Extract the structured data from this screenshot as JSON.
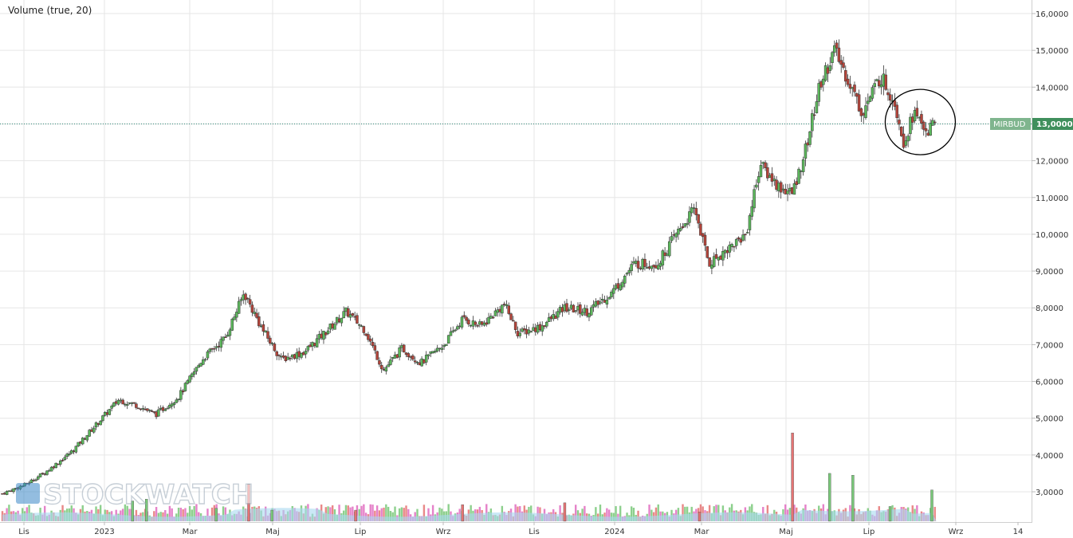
{
  "chart_data": {
    "type": "candlestick",
    "title": "",
    "indicator_label": "Volume (true, 20)",
    "symbol": "MIRBUD",
    "last_price": 13.0,
    "last_price_label": "13,0000",
    "ylim": [
      2.2,
      16.3
    ],
    "y_ticks": [
      3,
      4,
      5,
      6,
      7,
      8,
      9,
      10,
      11,
      12,
      13,
      14,
      15,
      16
    ],
    "y_tick_labels": [
      "3,0000",
      "4,0000",
      "5,0000",
      "6,0000",
      "7,0000",
      "8,0000",
      "9,0000",
      "10,0000",
      "11,0000",
      "12,0000",
      "13,0000",
      "14,0000",
      "15,0000",
      "16,0000"
    ],
    "x_axis_labels": [
      "Lis",
      "2023",
      "Mar",
      "Maj",
      "Lip",
      "Wrz",
      "Lis",
      "2024",
      "Mar",
      "Maj",
      "Lip",
      "Wrz",
      "14"
    ],
    "close_trend": [
      {
        "m": 0,
        "v": 2.95
      },
      {
        "m": 0.5,
        "v": 3.2
      },
      {
        "m": 1,
        "v": 3.6
      },
      {
        "m": 1.5,
        "v": 4.1
      },
      {
        "m": 2,
        "v": 4.8
      },
      {
        "m": 2.5,
        "v": 5.5
      },
      {
        "m": 2.9,
        "v": 5.35
      },
      {
        "m": 3.3,
        "v": 5.1
      },
      {
        "m": 3.8,
        "v": 5.6
      },
      {
        "m": 4.3,
        "v": 6.6
      },
      {
        "m": 4.8,
        "v": 7.2
      },
      {
        "m": 5.2,
        "v": 8.4
      },
      {
        "m": 5.6,
        "v": 7.4
      },
      {
        "m": 6,
        "v": 6.6
      },
      {
        "m": 6.5,
        "v": 6.8
      },
      {
        "m": 7,
        "v": 7.4
      },
      {
        "m": 7.4,
        "v": 7.9
      },
      {
        "m": 7.8,
        "v": 7.4
      },
      {
        "m": 8.2,
        "v": 6.3
      },
      {
        "m": 8.6,
        "v": 6.9
      },
      {
        "m": 9,
        "v": 6.5
      },
      {
        "m": 9.5,
        "v": 7.0
      },
      {
        "m": 9.9,
        "v": 7.7
      },
      {
        "m": 10.3,
        "v": 7.5
      },
      {
        "m": 10.8,
        "v": 8.1
      },
      {
        "m": 11.1,
        "v": 7.3
      },
      {
        "m": 11.6,
        "v": 7.5
      },
      {
        "m": 12.1,
        "v": 8.0
      },
      {
        "m": 12.6,
        "v": 7.9
      },
      {
        "m": 13.1,
        "v": 8.4
      },
      {
        "m": 13.6,
        "v": 9.2
      },
      {
        "m": 14.1,
        "v": 9.2
      },
      {
        "m": 14.5,
        "v": 10.0
      },
      {
        "m": 14.9,
        "v": 10.7
      },
      {
        "m": 15.2,
        "v": 9.2
      },
      {
        "m": 15.6,
        "v": 9.6
      },
      {
        "m": 16.0,
        "v": 10.0
      },
      {
        "m": 16.3,
        "v": 11.9
      },
      {
        "m": 16.7,
        "v": 11.3
      },
      {
        "m": 17.0,
        "v": 11.1
      },
      {
        "m": 17.3,
        "v": 12.4
      },
      {
        "m": 17.6,
        "v": 14.1
      },
      {
        "m": 17.9,
        "v": 15.0
      },
      {
        "m": 18.2,
        "v": 14.2
      },
      {
        "m": 18.5,
        "v": 13.3
      },
      {
        "m": 18.9,
        "v": 14.3
      },
      {
        "m": 19.2,
        "v": 13.6
      },
      {
        "m": 19.4,
        "v": 12.5
      },
      {
        "m": 19.6,
        "v": 13.3
      },
      {
        "m": 19.9,
        "v": 12.8
      },
      {
        "m": 20.1,
        "v": 13.0
      }
    ],
    "volume_spikes": [
      {
        "m": 4.6,
        "v": 0.35,
        "c": "up"
      },
      {
        "m": 5.8,
        "v": 0.3,
        "c": "up"
      },
      {
        "m": 2.8,
        "v": 0.55,
        "c": "up"
      },
      {
        "m": 7.6,
        "v": 0.3,
        "c": "down"
      },
      {
        "m": 9.9,
        "v": 0.45,
        "c": "down"
      },
      {
        "m": 15.0,
        "v": 0.25,
        "c": "down"
      },
      {
        "m": 17.0,
        "v": 2.4,
        "c": "down"
      },
      {
        "m": 17.8,
        "v": 1.3,
        "c": "up"
      },
      {
        "m": 18.3,
        "v": 1.25,
        "c": "up"
      },
      {
        "m": 19.1,
        "v": 0.4,
        "c": "up"
      },
      {
        "m": 20.0,
        "v": 0.85,
        "c": "up"
      },
      {
        "m": 12.1,
        "v": 0.5,
        "c": "down"
      },
      {
        "m": 5.3,
        "v": 1.0,
        "c": "down"
      },
      {
        "m": 3.1,
        "v": 0.6,
        "c": "up"
      }
    ],
    "annotation": "circle around recent consolidation near 13",
    "grid": true,
    "colors": {
      "up": "#5cb85c",
      "down": "#b5443a",
      "volume_up": "#79c879",
      "volume_down": "#e57373",
      "volume_mid": "#e06cbf",
      "volume_ma": "#a8d8f0",
      "last_price_line": "#2f8a7a",
      "price_tag_bg": "#7fb58e",
      "grid": "#e6e6e6"
    }
  },
  "watermark": "STOCKWATCH"
}
